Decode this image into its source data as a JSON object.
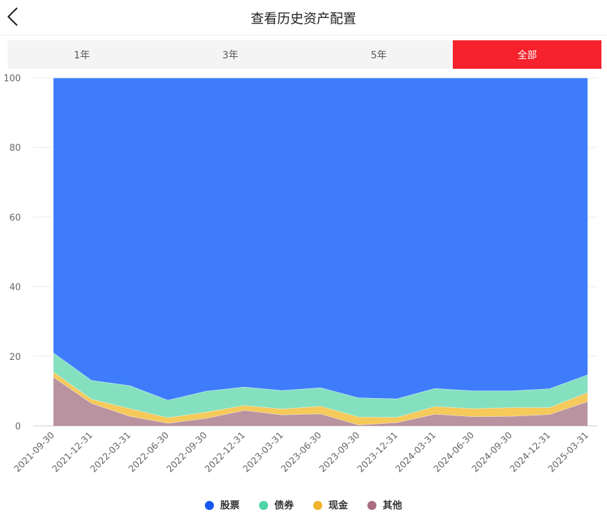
{
  "header": {
    "title": "查看历史资产配置",
    "back_icon": "chevron-left-icon"
  },
  "tabs": [
    {
      "label": "1年",
      "active": false
    },
    {
      "label": "3年",
      "active": false
    },
    {
      "label": "5年",
      "active": false
    },
    {
      "label": "全部",
      "active": true
    }
  ],
  "colors": {
    "active_tab": "#f5222d"
  },
  "chart_data": {
    "type": "area",
    "stacked": true,
    "ylim": [
      0,
      100
    ],
    "yticks": [
      0,
      20,
      40,
      60,
      80,
      100
    ],
    "grid": true,
    "legend_position": "bottom",
    "categories": [
      "2021-09-30",
      "2021-12-31",
      "2022-03-31",
      "2022-06-30",
      "2022-09-30",
      "2022-12-31",
      "2023-03-31",
      "2023-06-30",
      "2023-09-30",
      "2023-12-31",
      "2024-03-31",
      "2024-06-30",
      "2024-09-30",
      "2024-12-31",
      "2025-03-31"
    ],
    "series": [
      {
        "name": "其他",
        "color": "#b9939f",
        "legend_color": "#a86d7f",
        "values": [
          14,
          6.5,
          2.8,
          0.8,
          2.2,
          4.5,
          3.2,
          3.5,
          0.3,
          1.0,
          3.4,
          2.7,
          2.8,
          3.3,
          7.0
        ]
      },
      {
        "name": "现金",
        "color": "#f5c95a",
        "legend_color": "#f0b32b",
        "values": [
          1.5,
          1.2,
          2.2,
          1.6,
          1.8,
          1.4,
          1.7,
          2.2,
          2.3,
          1.5,
          2.2,
          2.3,
          2.5,
          2.0,
          2.6
        ]
      },
      {
        "name": "债券",
        "color": "#85e0bf",
        "legend_color": "#4fd4a3",
        "values": [
          5.5,
          5.4,
          6.6,
          5.0,
          6.0,
          5.3,
          5.3,
          5.3,
          5.5,
          5.3,
          5.2,
          5.1,
          4.8,
          5.4,
          5.1
        ]
      },
      {
        "name": "股票",
        "color": "#3e7cfc",
        "legend_color": "#1657f0",
        "values": [
          79,
          86.9,
          88.4,
          92.6,
          90.0,
          88.8,
          89.8,
          89.0,
          91.9,
          92.2,
          89.2,
          89.9,
          89.9,
          89.3,
          85.3
        ]
      }
    ]
  }
}
